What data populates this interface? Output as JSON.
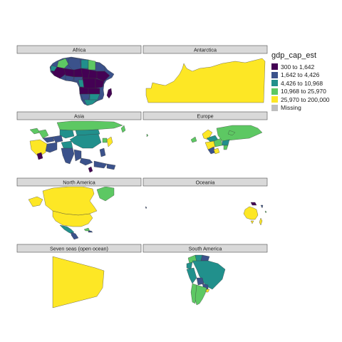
{
  "map": {
    "fill_variable": "gdp_cap_est",
    "panels": [
      {
        "id": "africa",
        "title": "Africa"
      },
      {
        "id": "antarctica",
        "title": "Antarctica"
      },
      {
        "id": "asia",
        "title": "Asia"
      },
      {
        "id": "europe",
        "title": "Europe"
      },
      {
        "id": "north-america",
        "title": "North America"
      },
      {
        "id": "oceania",
        "title": "Oceania"
      },
      {
        "id": "seven-seas",
        "title": "Seven seas (open ocean)"
      },
      {
        "id": "south-america",
        "title": "South America"
      }
    ]
  },
  "legend": {
    "title": "gdp_cap_est",
    "items": [
      {
        "label": "300 to 1,642",
        "color": "#440154"
      },
      {
        "label": "1,642 to 4,426",
        "color": "#3b528b"
      },
      {
        "label": "4,426 to 10,968",
        "color": "#21908c"
      },
      {
        "label": "10,968 to 25,970",
        "color": "#5dc863"
      },
      {
        "label": "25,970 to 200,000",
        "color": "#fde725"
      },
      {
        "label": "Missing",
        "color": "#bebebe"
      }
    ]
  }
}
